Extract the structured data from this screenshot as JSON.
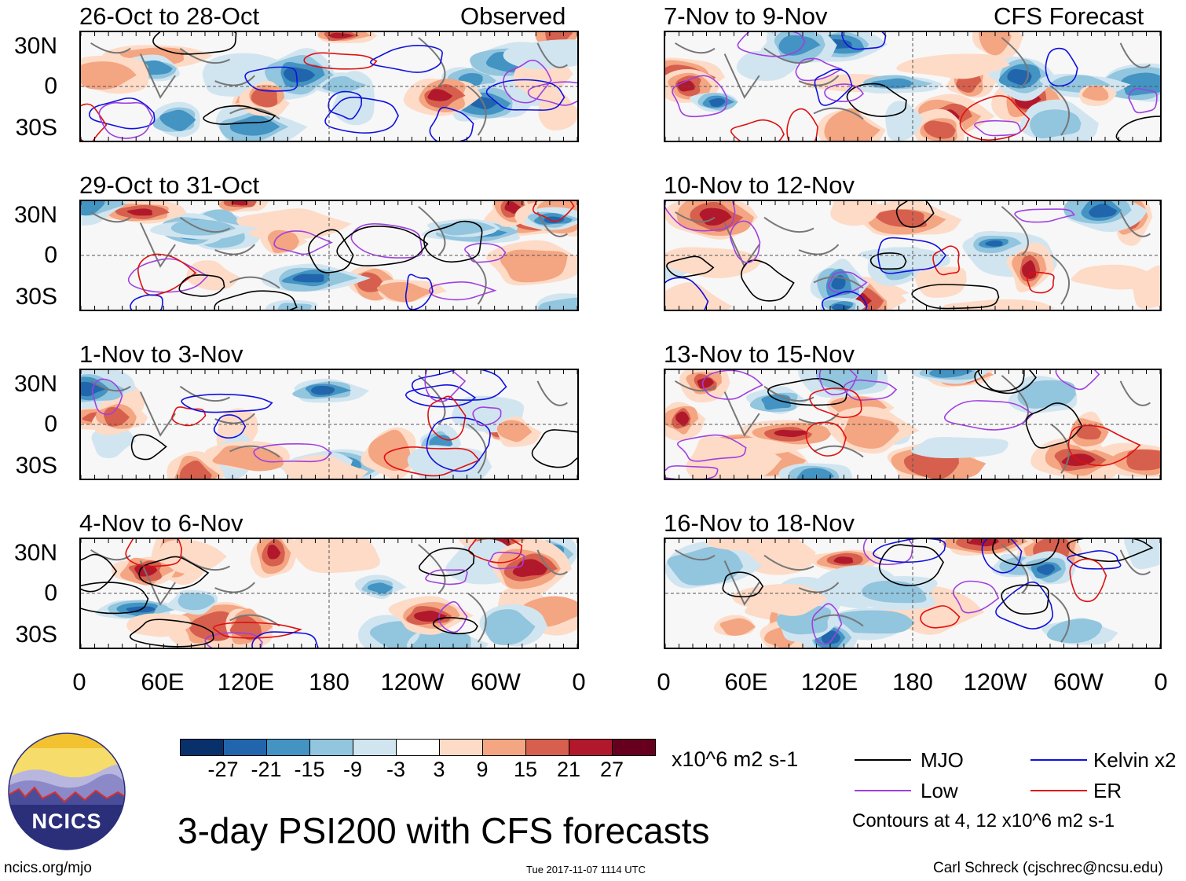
{
  "labels": {
    "observed": "Observed",
    "forecast": "CFS Forecast",
    "main_title": "3-day PSI200 with CFS forecasts",
    "units": "x10^6 m2 s-1",
    "contours_note": "Contours at 4, 12 x10^6 m2 s-1",
    "site": "ncics.org/mjo",
    "timestamp": "Tue 2017-11-07 1114 UTC",
    "author": "Carl Schreck (cjschrec@ncsu.edu)",
    "logo": "NCICS"
  },
  "panels": [
    {
      "title": "26-Oct to 28-Oct"
    },
    {
      "title": "29-Oct to 31-Oct"
    },
    {
      "title": "1-Nov to 3-Nov"
    },
    {
      "title": "4-Nov to 6-Nov"
    },
    {
      "title": "7-Nov to 9-Nov"
    },
    {
      "title": "10-Nov to 12-Nov"
    },
    {
      "title": "13-Nov to 15-Nov"
    },
    {
      "title": "16-Nov to 18-Nov"
    }
  ],
  "y_ticks": [
    "30N",
    "0",
    "30S"
  ],
  "x_ticks": [
    "0",
    "60E",
    "120E",
    "180",
    "120W",
    "60W",
    "0"
  ],
  "colorbar": {
    "ticks": [
      "-27",
      "-21",
      "-15",
      "-9",
      "-3",
      "3",
      "9",
      "15",
      "21",
      "27"
    ],
    "colors": [
      "#08306b",
      "#2166ac",
      "#4393c3",
      "#92c5de",
      "#d1e5f0",
      "#ffffff",
      "#fddbc7",
      "#f4a582",
      "#d6604d",
      "#b2182b",
      "#67001f"
    ]
  },
  "legend": [
    {
      "label": "MJO",
      "color": "#000000"
    },
    {
      "label": "Kelvin x2",
      "color": "#1010e0"
    },
    {
      "label": "Low",
      "color": "#a040e0"
    },
    {
      "label": "ER",
      "color": "#e01010"
    }
  ]
}
